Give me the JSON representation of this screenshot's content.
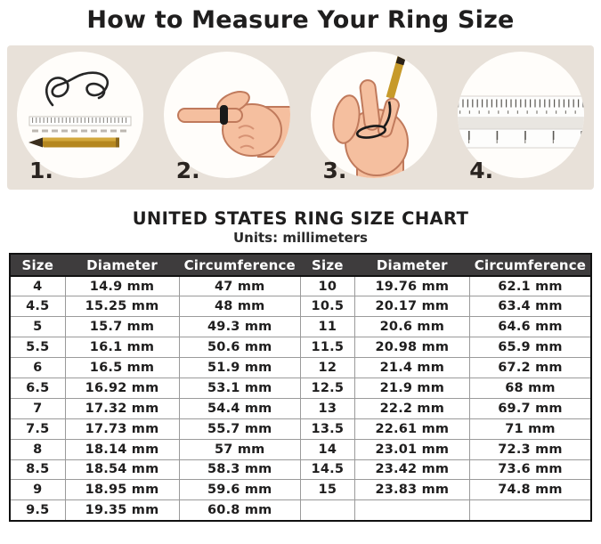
{
  "title": "How to Measure Your Ring Size",
  "steps": [
    {
      "number": "1.",
      "icon": "string-ruler-pencil-icon"
    },
    {
      "number": "2.",
      "icon": "pointing-hand-ring-icon"
    },
    {
      "number": "3.",
      "icon": "hand-string-pencil-icon"
    },
    {
      "number": "4.",
      "icon": "ruler-icon"
    }
  ],
  "chart": {
    "heading": "UNITED STATES RING SIZE CHART",
    "subheading": "Units: millimeters",
    "columns": [
      "Size",
      "Diameter",
      "Circumference",
      "Size",
      "Diameter",
      "Circumference"
    ],
    "rows": [
      [
        "4",
        "14.9 mm",
        "47 mm",
        "10",
        "19.76 mm",
        "62.1 mm"
      ],
      [
        "4.5",
        "15.25 mm",
        "48 mm",
        "10.5",
        "20.17 mm",
        "63.4 mm"
      ],
      [
        "5",
        "15.7 mm",
        "49.3 mm",
        "11",
        "20.6 mm",
        "64.6 mm"
      ],
      [
        "5.5",
        "16.1 mm",
        "50.6 mm",
        "11.5",
        "20.98 mm",
        "65.9 mm"
      ],
      [
        "6",
        "16.5 mm",
        "51.9 mm",
        "12",
        "21.4 mm",
        "67.2 mm"
      ],
      [
        "6.5",
        "16.92 mm",
        "53.1 mm",
        "12.5",
        "21.9 mm",
        "68 mm"
      ],
      [
        "7",
        "17.32 mm",
        "54.4 mm",
        "13",
        "22.2 mm",
        "69.7 mm"
      ],
      [
        "7.5",
        "17.73 mm",
        "55.7 mm",
        "13.5",
        "22.61 mm",
        "71 mm"
      ],
      [
        "8",
        "18.14 mm",
        "57 mm",
        "14",
        "23.01 mm",
        "72.3 mm"
      ],
      [
        "8.5",
        "18.54 mm",
        "58.3 mm",
        "14.5",
        "23.42 mm",
        "73.6 mm"
      ],
      [
        "9",
        "18.95 mm",
        "59.6 mm",
        "15",
        "23.83 mm",
        "74.8 mm"
      ],
      [
        "9.5",
        "19.35 mm",
        "60.8 mm",
        "",
        "",
        ""
      ]
    ]
  },
  "colors": {
    "band": "#e8e1d9",
    "circle": "#fffdfa",
    "header_bg": "#3e3c3d",
    "header_text": "#ffffff",
    "ink": "#1f1e1e",
    "grid": "#9a9a9a",
    "skin": "#f5bf9f",
    "skin_outline": "#c07a5c",
    "pencil": "#c79a2a",
    "string": "#1a1a1a"
  }
}
